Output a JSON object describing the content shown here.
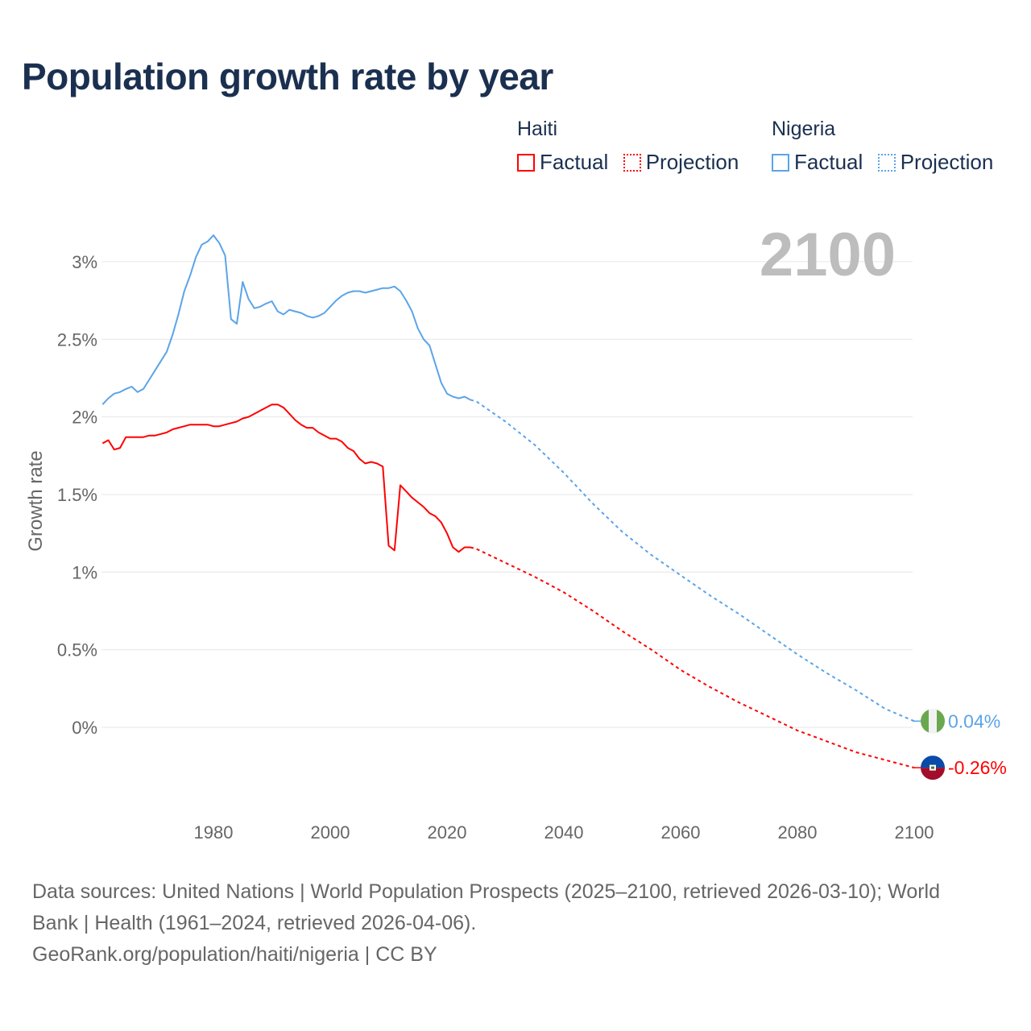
{
  "chart_data": {
    "type": "line",
    "title": "Population growth rate by year",
    "ylabel": "Growth rate",
    "xlabel": "",
    "xlim": [
      1961,
      2100
    ],
    "ylim": [
      -0.5,
      3.3
    ],
    "x_ticks": [
      1980,
      2000,
      2020,
      2040,
      2060,
      2080,
      2100
    ],
    "x_tick_labels": [
      "1980",
      "2000",
      "2020",
      "2040",
      "2060",
      "2080",
      "2100"
    ],
    "y_ticks": [
      0,
      0.5,
      1,
      1.5,
      2,
      2.5,
      3
    ],
    "y_tick_labels": [
      "0%",
      "0.5%",
      "1%",
      "1.5%",
      "2%",
      "2.5%",
      "3%"
    ],
    "grid": true,
    "year_watermark": "2100",
    "legend": {
      "placement": "top-right",
      "groups": [
        {
          "name": "Haiti",
          "items": [
            "Factual",
            "Projection"
          ],
          "color": "#ff0000"
        },
        {
          "name": "Nigeria",
          "items": [
            "Factual",
            "Projection"
          ],
          "color": "#5ba4e8"
        }
      ]
    },
    "series": [
      {
        "name": "Haiti",
        "color": "#ff0000",
        "end_label": "-0.26%",
        "flag": "haiti-flag",
        "factual": {
          "start_year": 1961,
          "values": [
            1.83,
            1.85,
            1.79,
            1.8,
            1.87,
            1.87,
            1.87,
            1.87,
            1.88,
            1.88,
            1.89,
            1.9,
            1.92,
            1.93,
            1.94,
            1.95,
            1.95,
            1.95,
            1.95,
            1.94,
            1.94,
            1.95,
            1.96,
            1.97,
            1.99,
            2.0,
            2.02,
            2.04,
            2.06,
            2.08,
            2.08,
            2.06,
            2.02,
            1.98,
            1.95,
            1.93,
            1.93,
            1.9,
            1.88,
            1.86,
            1.86,
            1.84,
            1.8,
            1.78,
            1.73,
            1.7,
            1.71,
            1.7,
            1.68,
            1.17,
            1.14,
            1.56,
            1.52,
            1.48,
            1.45,
            1.42,
            1.38,
            1.36,
            1.32,
            1.25,
            1.16,
            1.13,
            1.16,
            1.16
          ]
        },
        "projection": {
          "years": [
            2024,
            2025,
            2030,
            2035,
            2040,
            2045,
            2050,
            2055,
            2060,
            2065,
            2070,
            2075,
            2080,
            2085,
            2090,
            2095,
            2100
          ],
          "values": [
            1.16,
            1.15,
            1.06,
            0.97,
            0.87,
            0.75,
            0.62,
            0.5,
            0.37,
            0.26,
            0.16,
            0.07,
            -0.02,
            -0.09,
            -0.16,
            -0.21,
            -0.26
          ]
        }
      },
      {
        "name": "Nigeria",
        "color": "#5ba4e8",
        "end_label": "0.04%",
        "flag": "nigeria-flag",
        "factual": {
          "start_year": 1961,
          "values": [
            2.08,
            2.12,
            2.15,
            2.16,
            2.18,
            2.195,
            2.16,
            2.18,
            2.24,
            2.3,
            2.36,
            2.42,
            2.53,
            2.66,
            2.81,
            2.91,
            3.03,
            3.11,
            3.13,
            3.17,
            3.12,
            3.04,
            2.63,
            2.6,
            2.87,
            2.76,
            2.7,
            2.71,
            2.73,
            2.745,
            2.68,
            2.66,
            2.69,
            2.68,
            2.67,
            2.65,
            2.64,
            2.65,
            2.67,
            2.71,
            2.75,
            2.78,
            2.8,
            2.81,
            2.81,
            2.8,
            2.81,
            2.82,
            2.83,
            2.83,
            2.84,
            2.81,
            2.75,
            2.68,
            2.57,
            2.5,
            2.46,
            2.34,
            2.22,
            2.15,
            2.13,
            2.12,
            2.13,
            2.11
          ]
        },
        "projection": {
          "years": [
            2024,
            2025,
            2030,
            2035,
            2040,
            2045,
            2050,
            2055,
            2060,
            2065,
            2070,
            2075,
            2080,
            2085,
            2090,
            2095,
            2100
          ],
          "values": [
            2.11,
            2.1,
            1.97,
            1.82,
            1.64,
            1.44,
            1.26,
            1.11,
            0.98,
            0.85,
            0.73,
            0.6,
            0.47,
            0.35,
            0.24,
            0.12,
            0.04
          ]
        }
      }
    ]
  },
  "footer": {
    "sources_line1": "Data sources: United Nations | World Population Prospects (2025–2100, retrieved 2026-03-10); World",
    "sources_line2": "Bank | Health (1961–2024, retrieved 2026-04-06).",
    "attribution": "GeoRank.org/population/haiti/nigeria | CC BY"
  }
}
